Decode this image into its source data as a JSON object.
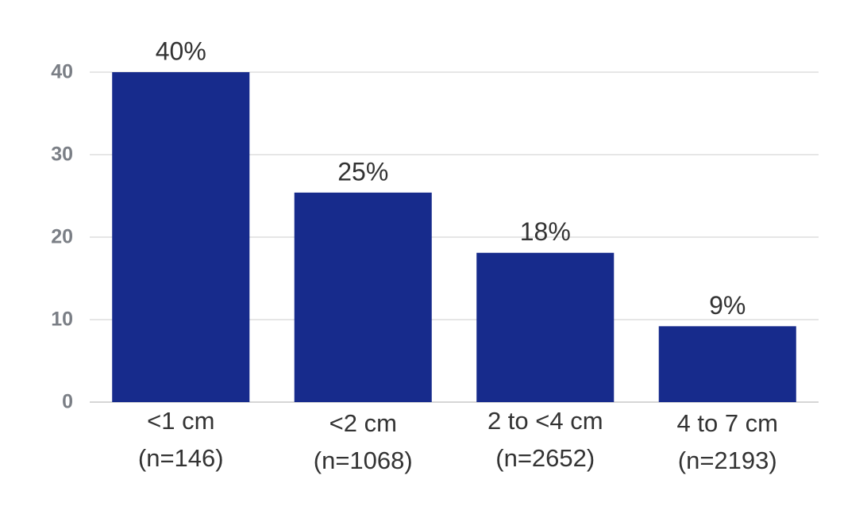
{
  "chart_data": {
    "type": "bar",
    "categories": [
      [
        "<1 cm",
        "(n=146)"
      ],
      [
        "<2 cm",
        "(n=1068)"
      ],
      [
        "2 to <4 cm",
        "(n=2652)"
      ],
      [
        "4 to 7 cm",
        "(n=2193)"
      ]
    ],
    "values": [
      40,
      25.4,
      18.1,
      9.2
    ],
    "value_labels": [
      "40%",
      "25%",
      "18%",
      "9%"
    ],
    "color": "#172b8c",
    "ylim": [
      0,
      40
    ],
    "yticks": [
      0,
      10,
      20,
      30,
      40
    ],
    "grid": true
  }
}
